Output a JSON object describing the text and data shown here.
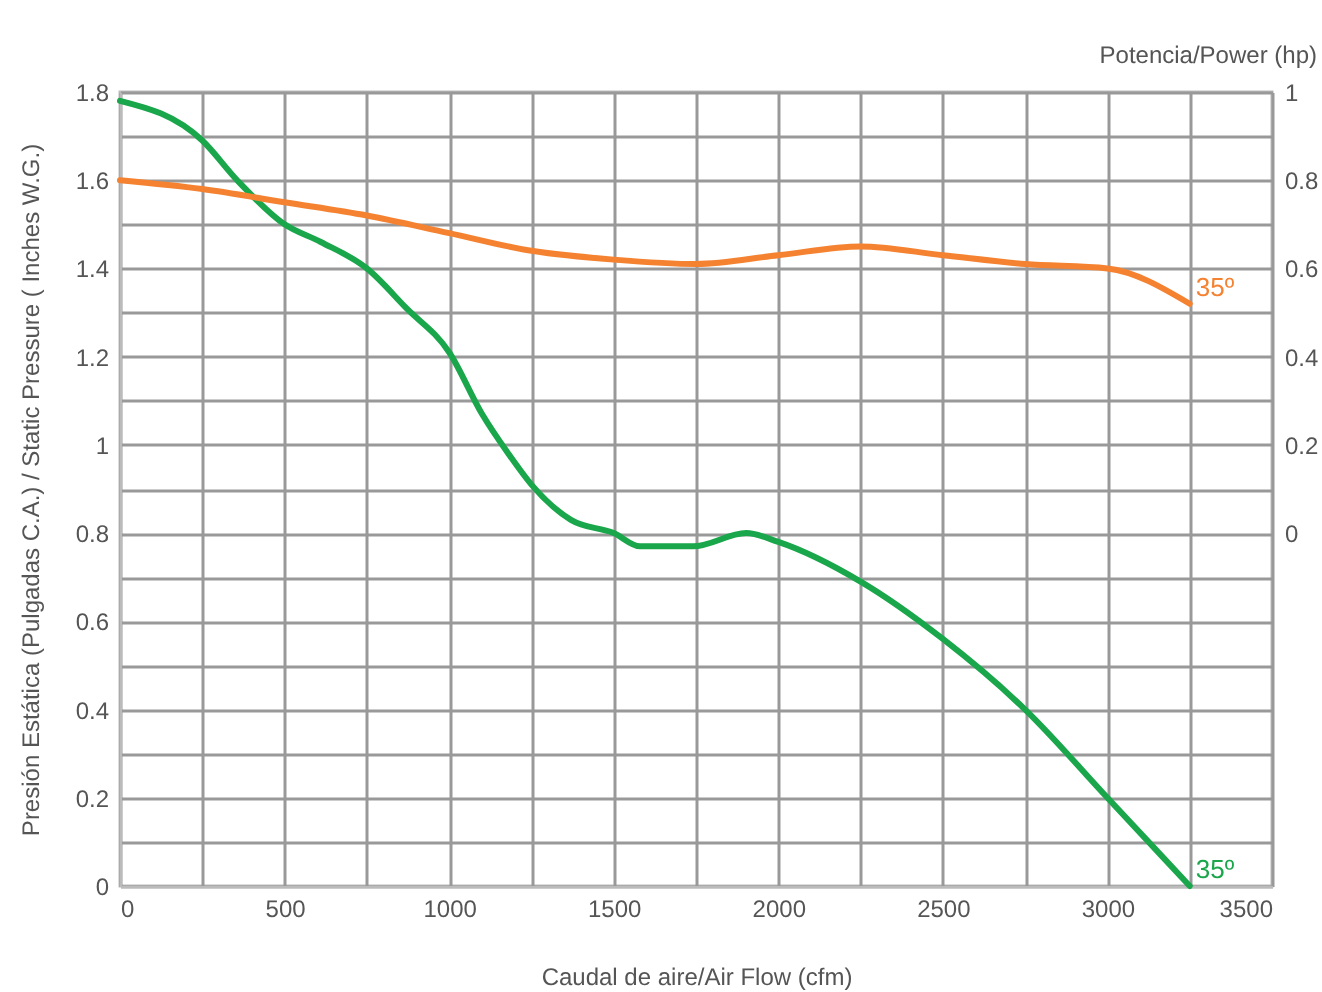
{
  "chart_data": {
    "type": "line",
    "xlabel": "Caudal de aire/Air Flow (cfm)",
    "ylabel": "Presión Estática (Pulgadas C.A.) / Static Pressure ( Inches W.G.)",
    "y2label": "Potencia/Power (hp)",
    "xlim": [
      0,
      3500
    ],
    "xticks": [
      0,
      {
        "value": 250,
        "label": null
      },
      500,
      {
        "value": 750,
        "label": null
      },
      1000,
      {
        "value": 1250,
        "label": null
      },
      1500,
      {
        "value": 1750,
        "label": null
      },
      2000,
      {
        "value": 2250,
        "label": null
      },
      2500,
      {
        "value": 2750,
        "label": null
      },
      3000,
      {
        "value": 3250,
        "label": null
      },
      3500
    ],
    "ylim": [
      0,
      1.8
    ],
    "yticks": [
      0,
      {
        "value": 0.1,
        "label": null
      },
      0.2,
      {
        "value": 0.3,
        "label": null
      },
      0.4,
      {
        "value": 0.5,
        "label": null
      },
      0.6,
      {
        "value": 0.7,
        "label": null
      },
      0.8,
      {
        "value": 0.9,
        "label": null
      },
      1,
      {
        "value": 1.1,
        "label": null
      },
      1.2,
      {
        "value": 1.3,
        "label": null
      },
      1.4,
      {
        "value": 1.5,
        "label": null
      },
      1.6,
      {
        "value": 1.7,
        "label": null
      },
      1.8
    ],
    "y2lim": [
      -0.8,
      1.0
    ],
    "y2ticks": [
      0,
      0.2,
      0.4,
      0.6,
      0.8,
      1
    ],
    "grid": true,
    "legend": false,
    "marker": "none",
    "line_style": "solid",
    "series": [
      {
        "color": "#1aa64a",
        "x": [
          0,
          250,
          356,
          500,
          610,
          750,
          870,
          1000,
          1100,
          1180,
          1250,
          1370,
          1500,
          1580,
          1741,
          1903,
          2000,
          2250,
          2500,
          2750,
          3000,
          3250
        ],
        "values": [
          1.78,
          1.69,
          1.6,
          1.5,
          1.46,
          1.4,
          1.31,
          1.21,
          1.07,
          0.98,
          0.91,
          0.83,
          0.8,
          0.77,
          0.77,
          0.8,
          0.78,
          0.69,
          0.56,
          0.4,
          0.2,
          0
        ]
      },
      {
        "color": "#f58231",
        "axis": "y2",
        "x": [
          0,
          250,
          500,
          750,
          1000,
          1250,
          1500,
          1750,
          2000,
          2250,
          2500,
          2750,
          3000,
          3250
        ],
        "values": [
          0.8,
          0.78,
          0.75,
          0.72,
          0.68,
          0.64,
          0.62,
          0.61,
          0.63,
          0.65,
          0.63,
          0.61,
          0.6,
          0.52
        ]
      }
    ],
    "annotations": [
      {
        "text": "35º",
        "x": 3250,
        "y": 0
      },
      {
        "text": "35º",
        "x": 3250,
        "y": 1.32
      }
    ]
  }
}
